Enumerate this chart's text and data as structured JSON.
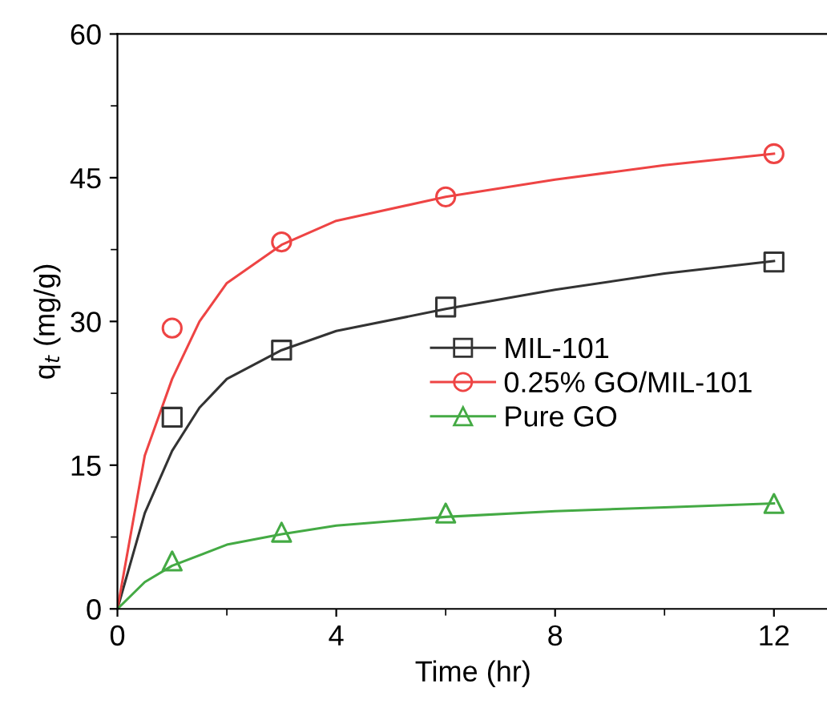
{
  "chart_data": {
    "type": "scatter",
    "xlabel": "Time (hr)",
    "ylabel": "q$_{t}$ (mg/g)",
    "xlim": [
      0,
      13
    ],
    "ylim": [
      0,
      60
    ],
    "xticks": [
      0,
      4,
      8,
      12
    ],
    "yticks": [
      0,
      15,
      30,
      45,
      60
    ],
    "grid": false,
    "legend": "right",
    "series": [
      {
        "name": "MIL-101",
        "color": "#333333",
        "marker": "square",
        "x": [
          1,
          3,
          6,
          12
        ],
        "values": [
          20,
          27,
          31.5,
          36.2
        ]
      },
      {
        "name": "0.25% GO/MIL-101",
        "color": "#ee4444",
        "marker": "circle",
        "x": [
          1,
          3,
          6,
          12
        ],
        "values": [
          29.3,
          38.3,
          43,
          47.5
        ]
      },
      {
        "name": "Pure GO",
        "color": "#44aa44",
        "marker": "triangle",
        "x": [
          1,
          3,
          6,
          12
        ],
        "values": [
          5,
          8,
          10,
          11
        ]
      },
      {
        "type": "line",
        "color": "#333333",
        "marker": "none",
        "x": [
          0,
          0.5,
          1,
          1.5,
          2,
          3,
          4,
          6,
          8,
          10,
          12
        ],
        "values": [
          0,
          10,
          16.5,
          21,
          24,
          27,
          29,
          31.3,
          33.3,
          35,
          36.3
        ]
      },
      {
        "type": "line",
        "color": "#ee4444",
        "marker": "none",
        "x": [
          0,
          0.5,
          1,
          1.5,
          2,
          3,
          4,
          6,
          8,
          10,
          12
        ],
        "values": [
          0,
          16,
          24,
          30,
          34,
          38,
          40.5,
          43,
          44.8,
          46.3,
          47.5
        ]
      },
      {
        "type": "line",
        "color": "#44aa44",
        "marker": "none",
        "x": [
          0,
          0.5,
          1,
          2,
          3,
          4,
          6,
          8,
          10,
          12
        ],
        "values": [
          0,
          2.8,
          4.5,
          6.7,
          7.8,
          8.7,
          9.6,
          10.2,
          10.6,
          11
        ]
      }
    ]
  }
}
